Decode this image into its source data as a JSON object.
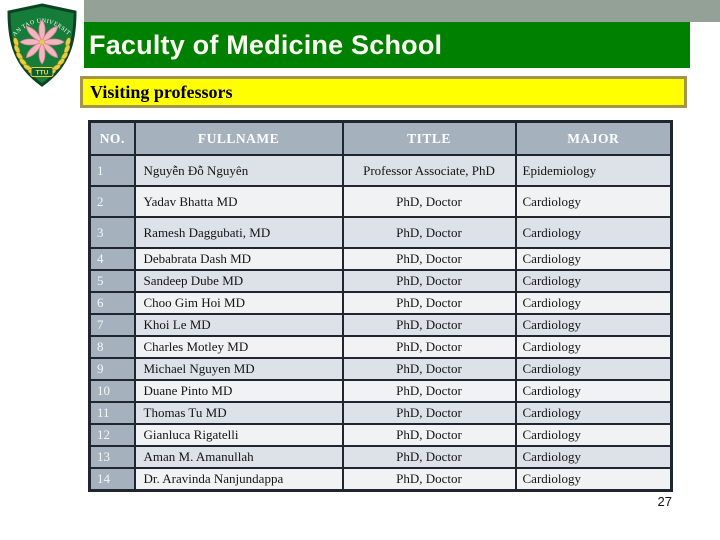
{
  "header": {
    "title": "Faculty of Medicine School",
    "bar_color": "#008000",
    "top_strip_color": "#93a197",
    "title_color": "#fcfcf2"
  },
  "logo": {
    "arc_text": "TAN TAO UNIVERSITY",
    "banner_text": "TTU",
    "shield_color": "#167c39",
    "shield_rim_color": "#0c4423",
    "flower_color": "#f2b6c1",
    "laurel_color": "#e7cf3f"
  },
  "section": {
    "title": "Visiting professors",
    "bg_color": "#ffff00",
    "border_color": "#a3944e"
  },
  "table": {
    "columns": [
      "NO.",
      "FULLNAME",
      "TITLE",
      "MAJOR"
    ],
    "header_bg": "#a5b1bd",
    "odd_row_bg": "#dde2e9",
    "even_row_bg": "#f1f2f4",
    "border_color": "#20262f",
    "rows": [
      {
        "no": "1",
        "fullname": "Nguyễn Đỗ Nguyên",
        "title": "Professor Associate, PhD",
        "major": "Epidemiology"
      },
      {
        "no": "2",
        "fullname": "Yadav Bhatta MD",
        "title": "PhD, Doctor",
        "major": "Cardiology"
      },
      {
        "no": "3",
        "fullname": "Ramesh Daggubati, MD",
        "title": "PhD, Doctor",
        "major": "Cardiology"
      },
      {
        "no": "4",
        "fullname": "Debabrata Dash MD",
        "title": "PhD, Doctor",
        "major": "Cardiology"
      },
      {
        "no": "5",
        "fullname": "Sandeep Dube MD",
        "title": "PhD, Doctor",
        "major": "Cardiology"
      },
      {
        "no": "6",
        "fullname": "Choo Gim Hoi MD",
        "title": "PhD, Doctor",
        "major": "Cardiology"
      },
      {
        "no": "7",
        "fullname": "Khoi Le MD",
        "title": "PhD, Doctor",
        "major": "Cardiology"
      },
      {
        "no": "8",
        "fullname": "Charles Motley MD",
        "title": "PhD, Doctor",
        "major": "Cardiology"
      },
      {
        "no": "9",
        "fullname": "Michael Nguyen MD",
        "title": "PhD, Doctor",
        "major": "Cardiology"
      },
      {
        "no": "10",
        "fullname": "Duane Pinto MD",
        "title": "PhD, Doctor",
        "major": "Cardiology"
      },
      {
        "no": "11",
        "fullname": "Thomas Tu MD",
        "title": "PhD, Doctor",
        "major": "Cardiology"
      },
      {
        "no": "12",
        "fullname": "Gianluca Rigatelli",
        "title": "PhD, Doctor",
        "major": "Cardiology"
      },
      {
        "no": "13",
        "fullname": "Aman M. Amanullah",
        "title": "PhD, Doctor",
        "major": "Cardiology"
      },
      {
        "no": "14",
        "fullname": "Dr. Aravinda Nanjundappa",
        "title": "PhD, Doctor",
        "major": "Cardiology"
      }
    ]
  },
  "footer": {
    "page_number": "27"
  }
}
